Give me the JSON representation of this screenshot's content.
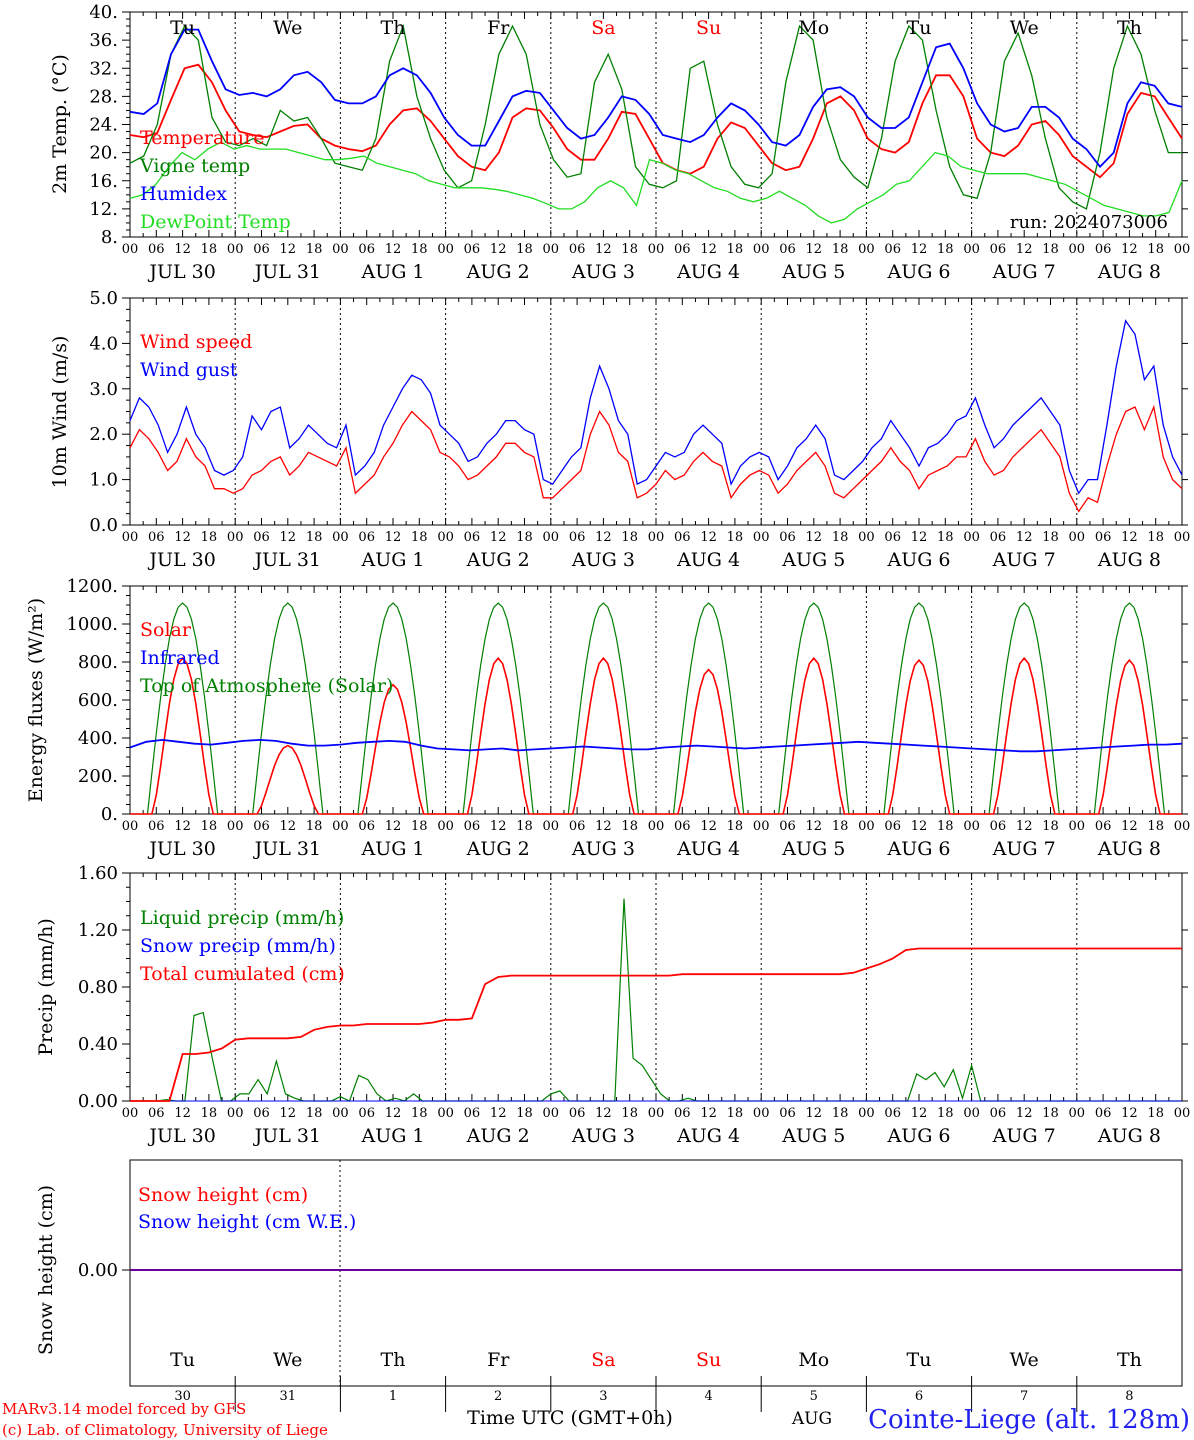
{
  "colors": {
    "red": "#ff0000",
    "blue": "#0000ff",
    "green": "#008000",
    "lightgreen": "#22dd22",
    "purple": "#660099",
    "axis": "#000000"
  },
  "days": {
    "weekdays": [
      "Tu",
      "We",
      "Th",
      "Fr",
      "Sa",
      "Su",
      "Mo",
      "Tu",
      "We",
      "Th"
    ],
    "weekend_index": [
      4,
      5
    ],
    "dates": [
      "JUL 30",
      "JUL 31",
      "AUG  1",
      "AUG  2",
      "AUG  3",
      "AUG  4",
      "AUG  5",
      "AUG  6",
      "AUG  7",
      "AUG  8"
    ],
    "day_numbers": [
      "30",
      "31",
      "1",
      "2",
      "3",
      "4",
      "5",
      "6",
      "7",
      "8"
    ],
    "hour_ticks": [
      "00",
      "06",
      "12",
      "18"
    ],
    "final_hour": "00"
  },
  "footer": {
    "model_line": "MARv3.14 model forced by GFS",
    "copyright_line": "(c) Lab. of Climatology, University of Liege",
    "time_axis_label": "Time UTC (GMT+0h)",
    "month_label": "AUG",
    "station": "Cointe-Liege (alt. 128m)"
  },
  "chart_data": [
    {
      "type": "line",
      "ylabel": "2m Temp. (°C)",
      "ylim": [
        8,
        40
      ],
      "yticks": [
        "8.",
        "12.",
        "16.",
        "20.",
        "24.",
        "28.",
        "32.",
        "36.",
        "40."
      ],
      "annotation": "run: 2024073006",
      "x_unit": "hours since JUL 30 00 UTC (3-hourly)",
      "series": [
        {
          "name": "Temperature",
          "color": "red",
          "values": [
            22.5,
            22.2,
            22.8,
            27.5,
            32,
            32.5,
            30,
            26,
            23,
            22.5,
            22.2,
            23,
            23.8,
            24,
            22,
            21,
            20.5,
            20.2,
            21,
            24,
            26,
            26.3,
            24.5,
            22,
            19.5,
            18,
            17.5,
            20,
            25,
            26.3,
            26,
            23.5,
            20.5,
            19,
            19,
            22,
            25.8,
            25.5,
            22,
            18.5,
            17.5,
            17,
            18,
            22,
            24.3,
            23.5,
            21,
            18.5,
            17.5,
            18,
            22,
            27,
            28,
            26,
            22,
            20.5,
            20,
            21.5,
            27,
            31,
            31,
            28,
            22,
            20,
            19.5,
            21,
            24,
            24.5,
            22.5,
            19.5,
            18,
            16.5,
            18.5,
            25.5,
            28.5,
            28,
            25,
            22
          ]
        },
        {
          "name": "Vigne temp",
          "color": "green",
          "values": [
            18.5,
            19.5,
            24,
            34,
            38,
            36,
            25,
            21.5,
            21,
            22,
            21,
            26,
            24.5,
            25,
            22,
            18.5,
            18,
            17.5,
            22,
            33,
            38,
            28,
            22,
            17.5,
            15,
            16,
            24,
            34,
            38,
            34,
            24,
            19,
            16.5,
            17,
            30,
            34,
            29,
            18,
            15.5,
            15,
            16,
            32,
            33,
            24,
            18,
            15.5,
            15,
            17,
            30,
            38,
            36,
            25,
            19,
            16.5,
            15,
            22,
            33,
            38,
            36,
            26,
            18,
            14,
            13.5,
            20,
            33,
            37,
            31,
            22,
            15,
            13,
            12,
            20,
            32,
            38,
            34,
            26,
            20,
            20
          ]
        },
        {
          "name": "Humidex",
          "color": "blue",
          "values": [
            25.8,
            25.5,
            27,
            34,
            37.5,
            37.5,
            33,
            29,
            28.2,
            28.5,
            28,
            29,
            31,
            31.5,
            30,
            27.5,
            27,
            27,
            28,
            31,
            32,
            31,
            28.5,
            25,
            22.5,
            21,
            21,
            24.5,
            28,
            28.8,
            28.5,
            26,
            23.5,
            22,
            22.5,
            25,
            28,
            27.5,
            25.5,
            22.5,
            22,
            21.5,
            22.5,
            25,
            27,
            26,
            24,
            21.5,
            21,
            22.5,
            26.5,
            29,
            29.3,
            28,
            25,
            23.5,
            23.5,
            25,
            30,
            35,
            35.5,
            32,
            27,
            24,
            23,
            23.5,
            26.5,
            26.5,
            25,
            22,
            20.5,
            18,
            20,
            27,
            30,
            29.5,
            27,
            26.5
          ]
        },
        {
          "name": "DewPoint Temp",
          "color": "lightgreen",
          "values": [
            13.5,
            14,
            15.5,
            18,
            20,
            19,
            20.5,
            21.5,
            20.5,
            21,
            20.5,
            20.5,
            20.5,
            20,
            19.5,
            19,
            19,
            19.2,
            19.5,
            18.5,
            18,
            17.5,
            17,
            16,
            15.5,
            15,
            15,
            15,
            14.8,
            14.5,
            14,
            13.5,
            12.8,
            12,
            12,
            13,
            15,
            16,
            15,
            12.5,
            19,
            18.5,
            17.5,
            17,
            16,
            15,
            14.5,
            13.5,
            13,
            13.5,
            14.5,
            13.5,
            12.5,
            11,
            10,
            10.5,
            12,
            13,
            14,
            15.5,
            16,
            18,
            20,
            19.5,
            18,
            17.5,
            17,
            17,
            17,
            17,
            16.5,
            16,
            15.5,
            14.5,
            13.5,
            12.5,
            12,
            11.5,
            11,
            11,
            11.5,
            16
          ]
        }
      ]
    },
    {
      "type": "line",
      "ylabel": "10m Wind (m/s)",
      "ylim": [
        0,
        5
      ],
      "yticks": [
        "0.0",
        "1.0",
        "2.0",
        "3.0",
        "4.0",
        "5.0"
      ],
      "series": [
        {
          "name": "Wind speed",
          "color": "red",
          "values": [
            1.7,
            2.1,
            1.9,
            1.6,
            1.2,
            1.4,
            1.9,
            1.5,
            1.3,
            0.8,
            0.8,
            0.7,
            0.8,
            1.1,
            1.2,
            1.4,
            1.5,
            1.1,
            1.3,
            1.6,
            1.5,
            1.4,
            1.3,
            1.7,
            0.7,
            0.9,
            1.1,
            1.5,
            1.8,
            2.2,
            2.5,
            2.3,
            2.1,
            1.6,
            1.5,
            1.3,
            1.0,
            1.1,
            1.3,
            1.5,
            1.8,
            1.8,
            1.6,
            1.5,
            0.6,
            0.6,
            0.8,
            1.0,
            1.2,
            2.0,
            2.5,
            2.2,
            1.6,
            1.4,
            0.6,
            0.7,
            0.9,
            1.2,
            1.0,
            1.1,
            1.4,
            1.6,
            1.4,
            1.3,
            0.6,
            0.9,
            1.1,
            1.2,
            1.1,
            0.7,
            0.9,
            1.2,
            1.4,
            1.6,
            1.3,
            0.7,
            0.6,
            0.8,
            1.0,
            1.2,
            1.4,
            1.7,
            1.4,
            1.2,
            0.8,
            1.1,
            1.2,
            1.3,
            1.5,
            1.5,
            1.9,
            1.4,
            1.1,
            1.2,
            1.5,
            1.7,
            1.9,
            2.1,
            1.8,
            1.5,
            0.7,
            0.3,
            0.6,
            0.5,
            1.3,
            2.0,
            2.5,
            2.6,
            2.1,
            2.6,
            1.5,
            1.0,
            0.8
          ]
        },
        {
          "name": "Wind gust",
          "color": "blue",
          "values": [
            2.3,
            2.8,
            2.6,
            2.2,
            1.6,
            2.0,
            2.6,
            2.0,
            1.7,
            1.2,
            1.1,
            1.2,
            1.5,
            2.4,
            2.1,
            2.5,
            2.6,
            1.7,
            1.9,
            2.2,
            2.0,
            1.8,
            1.7,
            2.2,
            1.1,
            1.3,
            1.6,
            2.2,
            2.6,
            3.0,
            3.3,
            3.2,
            2.9,
            2.2,
            2.0,
            1.8,
            1.4,
            1.5,
            1.8,
            2.0,
            2.3,
            2.3,
            2.1,
            2.0,
            1.0,
            0.9,
            1.2,
            1.5,
            1.7,
            2.8,
            3.5,
            3.0,
            2.3,
            2.0,
            0.9,
            1.0,
            1.3,
            1.6,
            1.5,
            1.6,
            2.0,
            2.2,
            2.0,
            1.8,
            0.9,
            1.3,
            1.5,
            1.6,
            1.5,
            1.0,
            1.3,
            1.7,
            1.9,
            2.2,
            1.9,
            1.1,
            1.0,
            1.2,
            1.4,
            1.7,
            1.9,
            2.3,
            2.0,
            1.7,
            1.3,
            1.7,
            1.8,
            2.0,
            2.3,
            2.4,
            2.8,
            2.2,
            1.7,
            1.9,
            2.2,
            2.4,
            2.6,
            2.8,
            2.5,
            2.2,
            1.2,
            0.7,
            1.0,
            1.0,
            2.2,
            3.5,
            4.5,
            4.2,
            3.2,
            3.5,
            2.2,
            1.5,
            1.1
          ]
        }
      ]
    },
    {
      "type": "line",
      "ylabel": "Energy fluxes (W/m²)",
      "ylim": [
        0,
        1200
      ],
      "yticks": [
        "0.",
        "200.",
        "400.",
        "600.",
        "800.",
        "1000.",
        "1200."
      ],
      "series": [
        {
          "name": "Solar",
          "color": "red",
          "peaks": [
            820,
            360,
            680,
            820,
            820,
            760,
            820,
            810,
            820,
            810
          ]
        },
        {
          "name": "Infrared",
          "color": "blue",
          "values": [
            350,
            380,
            390,
            380,
            370,
            365,
            375,
            385,
            390,
            385,
            370,
            360,
            360,
            365,
            375,
            380,
            385,
            380,
            360,
            345,
            340,
            335,
            340,
            345,
            335,
            340,
            345,
            350,
            355,
            350,
            345,
            340,
            340,
            350,
            355,
            360,
            355,
            350,
            345,
            350,
            355,
            360,
            365,
            370,
            375,
            380,
            375,
            370,
            365,
            360,
            355,
            350,
            345,
            340,
            335,
            330,
            330,
            335,
            340,
            345,
            350,
            355,
            360,
            365,
            365,
            370
          ]
        },
        {
          "name": "Top of Atmosphere (Solar)",
          "color": "green",
          "peak": 1110
        }
      ]
    },
    {
      "type": "line",
      "ylabel": "Precip (mm/h)",
      "ylim": [
        0,
        1.6
      ],
      "yticks": [
        "0.00",
        "0.40",
        "0.80",
        "1.20",
        "1.60"
      ],
      "series": [
        {
          "name": "Liquid precip (mm/h)",
          "color": "green",
          "values": [
            0,
            0,
            0,
            0,
            0.01,
            0,
            0,
            0.6,
            0.62,
            0.3,
            0,
            0,
            0.05,
            0.05,
            0.15,
            0.05,
            0.28,
            0.05,
            0.02,
            0,
            0,
            0,
            0,
            0.03,
            0,
            0.18,
            0.15,
            0.05,
            0,
            0.02,
            0,
            0.05,
            0,
            0,
            0,
            0,
            0,
            0,
            0,
            0,
            0,
            0,
            0,
            0,
            0,
            0,
            0.05,
            0.07,
            0,
            0,
            0,
            0,
            0,
            0,
            1.42,
            0.3,
            0.25,
            0.15,
            0.05,
            0,
            0,
            0.02,
            0,
            0,
            0,
            0,
            0,
            0,
            0,
            0,
            0,
            0,
            0,
            0,
            0,
            0,
            0,
            0,
            0,
            0,
            0,
            0,
            0,
            0,
            0,
            0,
            0.19,
            0.15,
            0.2,
            0.1,
            0.22,
            0.02,
            0.25,
            0,
            0,
            0,
            0,
            0,
            0,
            0,
            0,
            0,
            0,
            0,
            0,
            0,
            0,
            0,
            0,
            0,
            0,
            0,
            0,
            0,
            0,
            0
          ]
        },
        {
          "name": "Snow precip (mm/h)",
          "color": "blue",
          "values": [
            0
          ]
        },
        {
          "name": "Total cumulated (cm)",
          "color": "red",
          "values": [
            0,
            0,
            0,
            0,
            0.33,
            0.33,
            0.34,
            0.37,
            0.43,
            0.44,
            0.44,
            0.44,
            0.44,
            0.45,
            0.5,
            0.52,
            0.53,
            0.53,
            0.54,
            0.54,
            0.54,
            0.54,
            0.54,
            0.55,
            0.57,
            0.57,
            0.58,
            0.82,
            0.87,
            0.88,
            0.88,
            0.88,
            0.88,
            0.88,
            0.88,
            0.88,
            0.88,
            0.88,
            0.88,
            0.88,
            0.88,
            0.88,
            0.89,
            0.89,
            0.89,
            0.89,
            0.89,
            0.89,
            0.89,
            0.89,
            0.89,
            0.89,
            0.89,
            0.89,
            0.89,
            0.9,
            0.93,
            0.96,
            1.0,
            1.06,
            1.07,
            1.07,
            1.07,
            1.07,
            1.07,
            1.07,
            1.07,
            1.07,
            1.07,
            1.07,
            1.07,
            1.07,
            1.07,
            1.07,
            1.07,
            1.07,
            1.07,
            1.07,
            1.07,
            1.07,
            1.07
          ]
        }
      ]
    },
    {
      "type": "line",
      "ylabel": "Snow height (cm)",
      "ytick": "0.00",
      "series": [
        {
          "name": "Snow height (cm)",
          "color": "red",
          "values": [
            0
          ]
        },
        {
          "name": "Snow height (cm W.E.)",
          "color": "blue",
          "values": [
            0
          ]
        }
      ]
    }
  ]
}
